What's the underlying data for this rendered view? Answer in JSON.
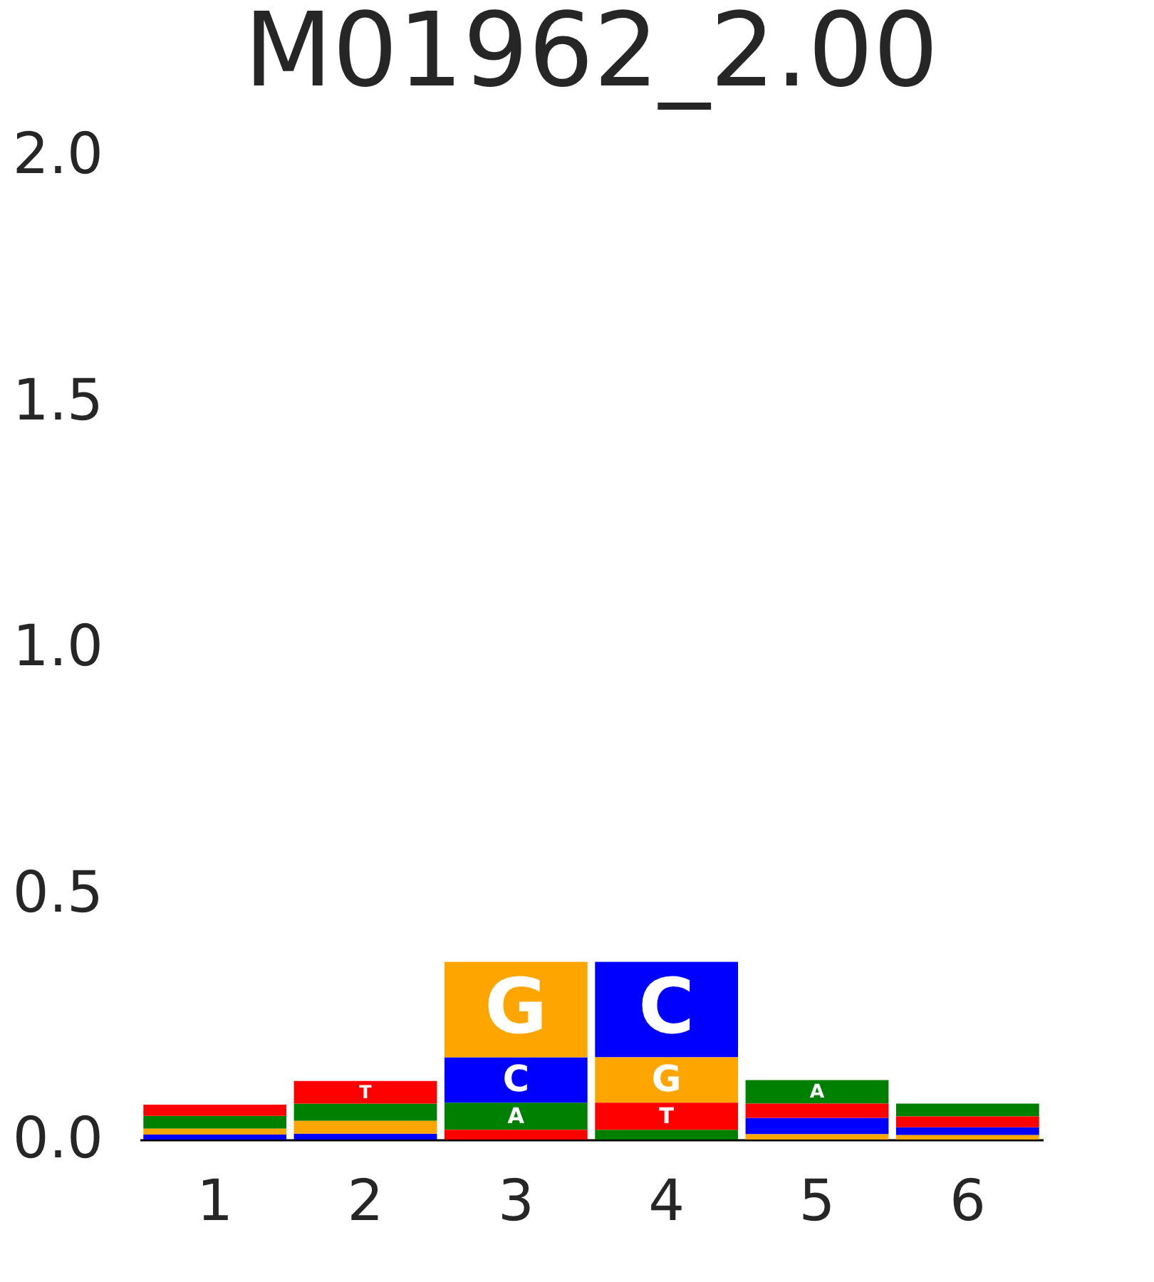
{
  "chart_data": {
    "type": "bar",
    "title": "M01962_2.00",
    "categories": [
      "1",
      "2",
      "3",
      "4",
      "5",
      "6"
    ],
    "series": [
      {
        "name": "A",
        "color": "#008000",
        "values": [
          0.026,
          0.035,
          0.055,
          0.02,
          0.048,
          0.026
        ],
        "base": [
          0.022,
          0.038,
          0.02,
          0,
          0.073,
          0.047
        ]
      },
      {
        "name": "C",
        "color": "#0000ff",
        "values": [
          0.01,
          0.012,
          0.092,
          0.194,
          0.033,
          0.016
        ],
        "base": [
          0,
          0,
          0.075,
          0.167,
          0.011,
          0.009
        ]
      },
      {
        "name": "G",
        "color": "#ffa500",
        "values": [
          0.012,
          0.026,
          0.194,
          0.092,
          0.011,
          0.009
        ],
        "base": [
          0.01,
          0.012,
          0.167,
          0.075,
          0,
          0
        ]
      },
      {
        "name": "T",
        "color": "#ff0000",
        "values": [
          0.023,
          0.046,
          0.02,
          0.055,
          0.029,
          0.022
        ],
        "base": [
          0.048,
          0.073,
          0,
          0.02,
          0.044,
          0.025
        ]
      }
    ],
    "ylim": [
      0,
      2
    ],
    "yticks": [
      {
        "value": 0,
        "label": "0.0"
      },
      0.5,
      {
        "value": 1,
        "label": "1.0"
      },
      1.5,
      {
        "value": 2,
        "label": "2.0"
      }
    ],
    "grid": false,
    "legend": false
  }
}
